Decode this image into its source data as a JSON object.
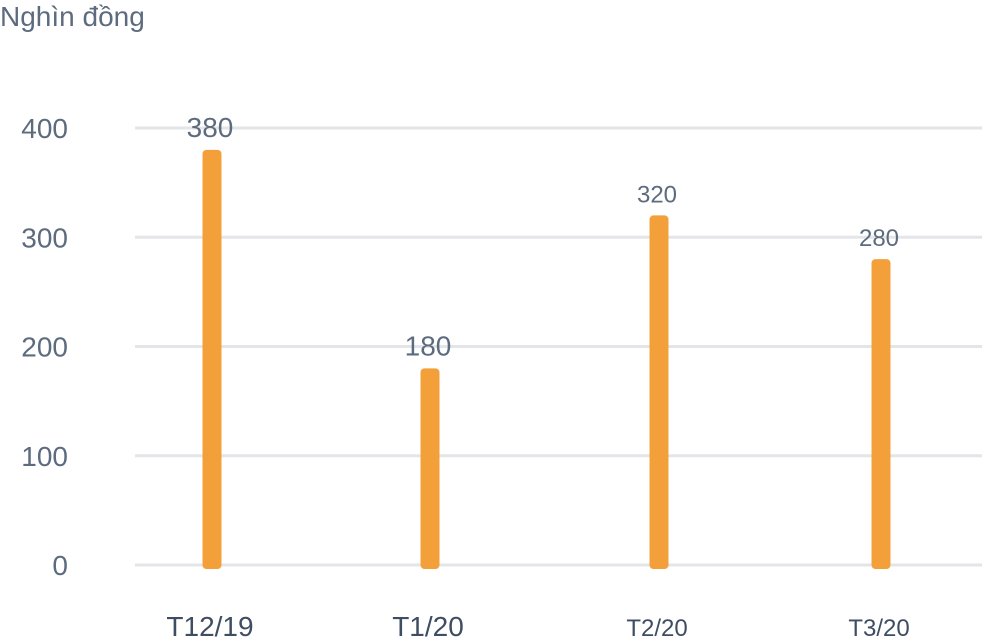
{
  "chart_data": {
    "type": "bar",
    "ylabel": "Nghìn đồng",
    "categories": [
      "T12/19",
      "T1/20",
      "T2/20",
      "T3/20"
    ],
    "values": [
      380,
      180,
      320,
      280
    ],
    "ylim": [
      0,
      400
    ],
    "yticks": [
      "0",
      "100",
      "200",
      "300",
      "400"
    ],
    "grid": true,
    "bar_color": "#f4a03a",
    "grid_color": "#e3e5e8"
  }
}
